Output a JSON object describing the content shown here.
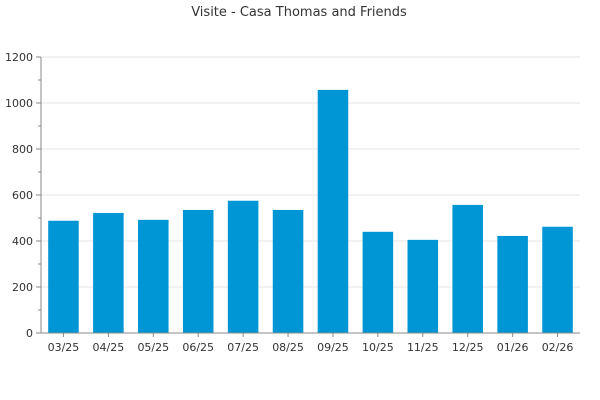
{
  "chart_data": {
    "type": "bar",
    "title": "Visite - Casa Thomas and Friends",
    "xlabel": "",
    "ylabel": "",
    "categories": [
      "03/25",
      "04/25",
      "05/25",
      "06/25",
      "07/25",
      "08/25",
      "09/25",
      "10/25",
      "11/25",
      "12/25",
      "01/26",
      "02/26"
    ],
    "values": [
      488,
      522,
      492,
      535,
      575,
      535,
      1057,
      440,
      405,
      557,
      422,
      462
    ],
    "ylim": [
      0,
      1200
    ],
    "yticks": [
      0,
      200,
      400,
      600,
      800,
      1000,
      1200
    ],
    "grid": true,
    "legend": "none",
    "bar_color": "#0096d6",
    "grid_color": "#e6e6e6",
    "axis_color": "#888888"
  }
}
